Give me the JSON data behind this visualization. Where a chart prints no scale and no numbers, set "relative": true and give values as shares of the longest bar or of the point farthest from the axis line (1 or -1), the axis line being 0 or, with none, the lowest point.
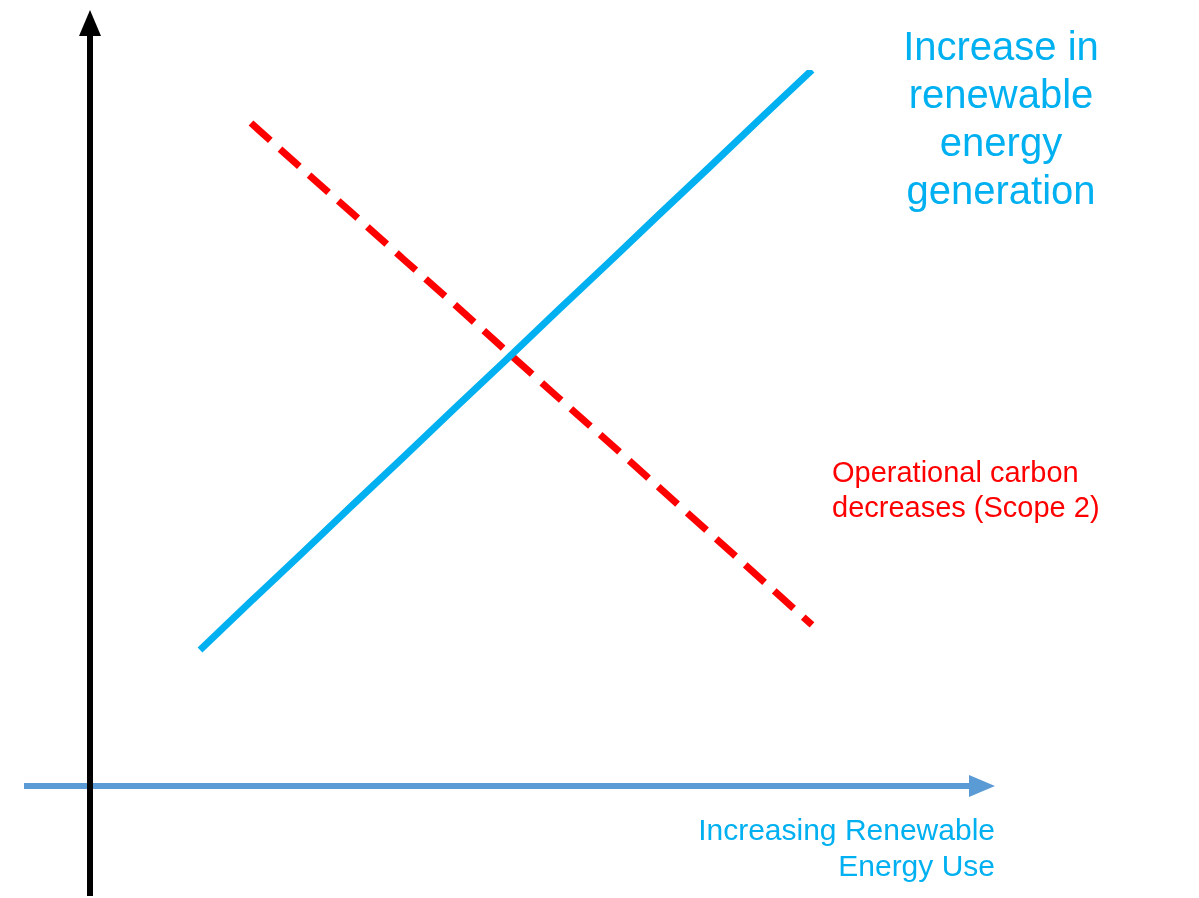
{
  "chart_data": {
    "type": "line",
    "relative": true,
    "xlabel": "Increasing Renewable Energy Use",
    "marker": "none",
    "categories": [
      null,
      null,
      null,
      null,
      null,
      null,
      null,
      null,
      null,
      null,
      null,
      null,
      null
    ],
    "series": [
      {
        "name": "Increase in renewable energy generation",
        "color": "#00b0f0",
        "values": [
          0.19,
          0.258,
          0.325,
          0.393,
          0.46,
          0.528,
          0.595,
          0.663,
          0.73,
          0.798,
          0.865,
          0.933,
          1
        ],
        "line_style": "solid"
      },
      {
        "name": "Operational carbon decreases (Scope 2)",
        "color": "#ff0000",
        "values": [
          null,
          0.926,
          0.862,
          0.799,
          0.735,
          0.672,
          0.608,
          0.544,
          0.481,
          0.417,
          0.353,
          0.289,
          0.225
        ],
        "line_style": "dashed"
      }
    ]
  }
}
